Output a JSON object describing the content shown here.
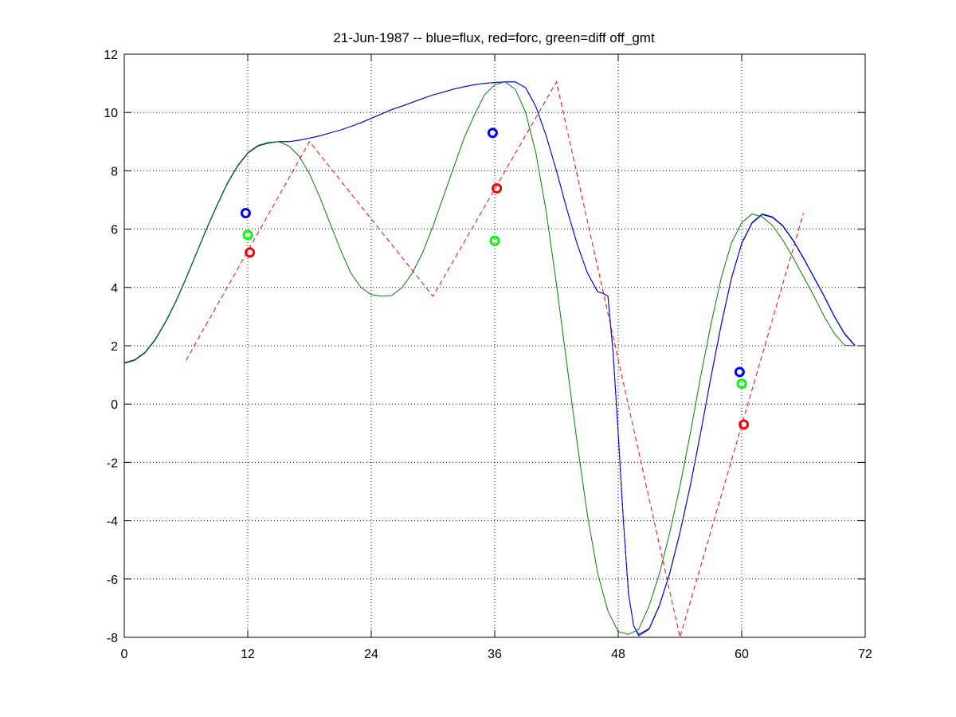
{
  "chart_data": {
    "type": "line",
    "title": "21-Jun-1987 -- blue=flux, red=forc, green=diff off_gmt",
    "xlabel": "",
    "ylabel": "",
    "xlim": [
      0,
      72
    ],
    "ylim": [
      -8,
      12
    ],
    "xticks": [
      0,
      12,
      24,
      36,
      48,
      60,
      72
    ],
    "yticks": [
      -8,
      -6,
      -4,
      -2,
      0,
      2,
      4,
      6,
      8,
      10,
      12
    ],
    "grid": true,
    "colors": {
      "blue": "#0000ff",
      "red": "#ff0000",
      "green": "#00ff00",
      "darkgreen": "#008000",
      "navy": "#000080"
    },
    "series": [
      {
        "color": "#000080",
        "style": "solid",
        "x": [
          0,
          1,
          2,
          3,
          4,
          5,
          6,
          7,
          8,
          9,
          10,
          11,
          12,
          13,
          14,
          15,
          16,
          17,
          18,
          19,
          20,
          21,
          22,
          23,
          24,
          25,
          26,
          27,
          28,
          29,
          30,
          31,
          32,
          33,
          34,
          35,
          36,
          37,
          38,
          39,
          40,
          41,
          42,
          43,
          44,
          45,
          46,
          46.5,
          47,
          47.5,
          48,
          48.5,
          49,
          49.5,
          50,
          51,
          52,
          53,
          54,
          55,
          56,
          57,
          58,
          59,
          60,
          61,
          62,
          63,
          64,
          65,
          66,
          67,
          68,
          69,
          70,
          71
        ],
        "y": [
          1.4,
          1.5,
          1.75,
          2.2,
          2.8,
          3.5,
          4.3,
          5.15,
          6.0,
          6.8,
          7.55,
          8.15,
          8.6,
          8.85,
          8.95,
          9.0,
          9.0,
          9.05,
          9.12,
          9.2,
          9.3,
          9.4,
          9.52,
          9.65,
          9.8,
          9.95,
          10.1,
          10.22,
          10.35,
          10.48,
          10.6,
          10.7,
          10.8,
          10.88,
          10.95,
          11.0,
          11.03,
          11.05,
          11.05,
          10.85,
          10.2,
          9.2,
          8.0,
          6.7,
          5.5,
          4.5,
          3.85,
          3.8,
          3.7,
          1.8,
          -1.0,
          -4.0,
          -6.5,
          -7.6,
          -7.9,
          -7.7,
          -6.9,
          -5.8,
          -4.4,
          -2.8,
          -1.0,
          0.9,
          2.7,
          4.3,
          5.5,
          6.2,
          6.5,
          6.4,
          6.1,
          5.6,
          5.0,
          4.35,
          3.7,
          3.0,
          2.4,
          2.0
        ]
      },
      {
        "color": "#0000ff",
        "style": "solid",
        "x": [
          0,
          1,
          2,
          3,
          4,
          5,
          6,
          7,
          8,
          9,
          10,
          11,
          12,
          13,
          14,
          15,
          16,
          17,
          18,
          19,
          20,
          21,
          22,
          23,
          24,
          25,
          26,
          27,
          28,
          29,
          30,
          31,
          32,
          33,
          34,
          35,
          36,
          37,
          38,
          39,
          40,
          41,
          42,
          43,
          44,
          45,
          46,
          46.5,
          47,
          47.5,
          48,
          48.5,
          49,
          49.5,
          50,
          51,
          52,
          53,
          54,
          55,
          56,
          57,
          58,
          59,
          60,
          61,
          62,
          63,
          64,
          65,
          66,
          67,
          68,
          69,
          70,
          71
        ],
        "y": [
          1.42,
          1.52,
          1.77,
          2.22,
          2.82,
          3.52,
          4.32,
          5.17,
          6.02,
          6.82,
          7.57,
          8.17,
          8.62,
          8.87,
          8.97,
          9.0,
          9.0,
          9.05,
          9.12,
          9.2,
          9.3,
          9.4,
          9.52,
          9.65,
          9.8,
          9.95,
          10.1,
          10.22,
          10.35,
          10.48,
          10.6,
          10.7,
          10.8,
          10.88,
          10.95,
          11.0,
          11.03,
          11.05,
          11.05,
          10.85,
          10.2,
          9.2,
          8.0,
          6.7,
          5.5,
          4.5,
          3.85,
          3.8,
          3.7,
          1.8,
          -1.0,
          -4.0,
          -6.5,
          -7.6,
          -7.95,
          -7.72,
          -6.92,
          -5.82,
          -4.42,
          -2.82,
          -1.02,
          0.92,
          2.72,
          4.32,
          5.52,
          6.22,
          6.52,
          6.42,
          6.12,
          5.62,
          5.02,
          4.37,
          3.72,
          3.02,
          2.42,
          2.02
        ]
      },
      {
        "color": "#008000",
        "style": "solid",
        "x": [
          0,
          1,
          2,
          3,
          4,
          5,
          6,
          7,
          8,
          9,
          10,
          11,
          12,
          13,
          14,
          15,
          16,
          17,
          18,
          19,
          20,
          21,
          22,
          23,
          24,
          25,
          26,
          27,
          28,
          29,
          30,
          31,
          32,
          33,
          34,
          35,
          36,
          37,
          38,
          39,
          40,
          41,
          42,
          43,
          44,
          45,
          46,
          47,
          48,
          49,
          50,
          51,
          52,
          53,
          54,
          55,
          56,
          57,
          58,
          59,
          60,
          61,
          62,
          63,
          64,
          65,
          66,
          67,
          68,
          69,
          70,
          71
        ],
        "y": [
          1.42,
          1.52,
          1.77,
          2.22,
          2.82,
          3.52,
          4.32,
          5.17,
          6.02,
          6.82,
          7.57,
          8.17,
          8.62,
          8.87,
          8.97,
          9.0,
          8.85,
          8.5,
          7.9,
          7.1,
          6.2,
          5.3,
          4.5,
          4.0,
          3.75,
          3.7,
          3.72,
          4.0,
          4.5,
          5.2,
          6.1,
          7.1,
          8.1,
          9.1,
          9.9,
          10.6,
          10.95,
          11.05,
          10.8,
          10.0,
          8.6,
          6.6,
          4.1,
          1.4,
          -1.3,
          -3.8,
          -5.8,
          -7.1,
          -7.8,
          -7.9,
          -7.72,
          -6.92,
          -5.82,
          -4.42,
          -2.82,
          -1.02,
          0.92,
          2.72,
          4.32,
          5.52,
          6.22,
          6.52,
          6.42,
          6.12,
          5.62,
          5.02,
          4.37,
          3.72,
          3.02,
          2.42,
          2.02,
          2.0
        ]
      },
      {
        "color": "#ff0000",
        "style": "dashed",
        "x": [
          6,
          18,
          30,
          42,
          54,
          66
        ],
        "y": [
          1.5,
          9.0,
          3.7,
          11.05,
          -8.0,
          6.55
        ]
      }
    ],
    "markers": [
      {
        "series": "flux",
        "color": "#0000ff",
        "x": 11.8,
        "y": 6.55
      },
      {
        "series": "diff",
        "color": "#00ff00",
        "x": 12.0,
        "y": 5.8
      },
      {
        "series": "forc",
        "color": "#ff0000",
        "x": 12.2,
        "y": 5.2
      },
      {
        "series": "flux",
        "color": "#0000ff",
        "x": 35.8,
        "y": 9.3
      },
      {
        "series": "forc",
        "color": "#ff0000",
        "x": 36.2,
        "y": 7.4
      },
      {
        "series": "diff",
        "color": "#00ff00",
        "x": 36.0,
        "y": 5.6
      },
      {
        "series": "flux",
        "color": "#0000ff",
        "x": 59.8,
        "y": 1.1
      },
      {
        "series": "diff",
        "color": "#00ff00",
        "x": 60.0,
        "y": 0.7
      },
      {
        "series": "forc",
        "color": "#ff0000",
        "x": 60.2,
        "y": -0.7
      }
    ]
  }
}
